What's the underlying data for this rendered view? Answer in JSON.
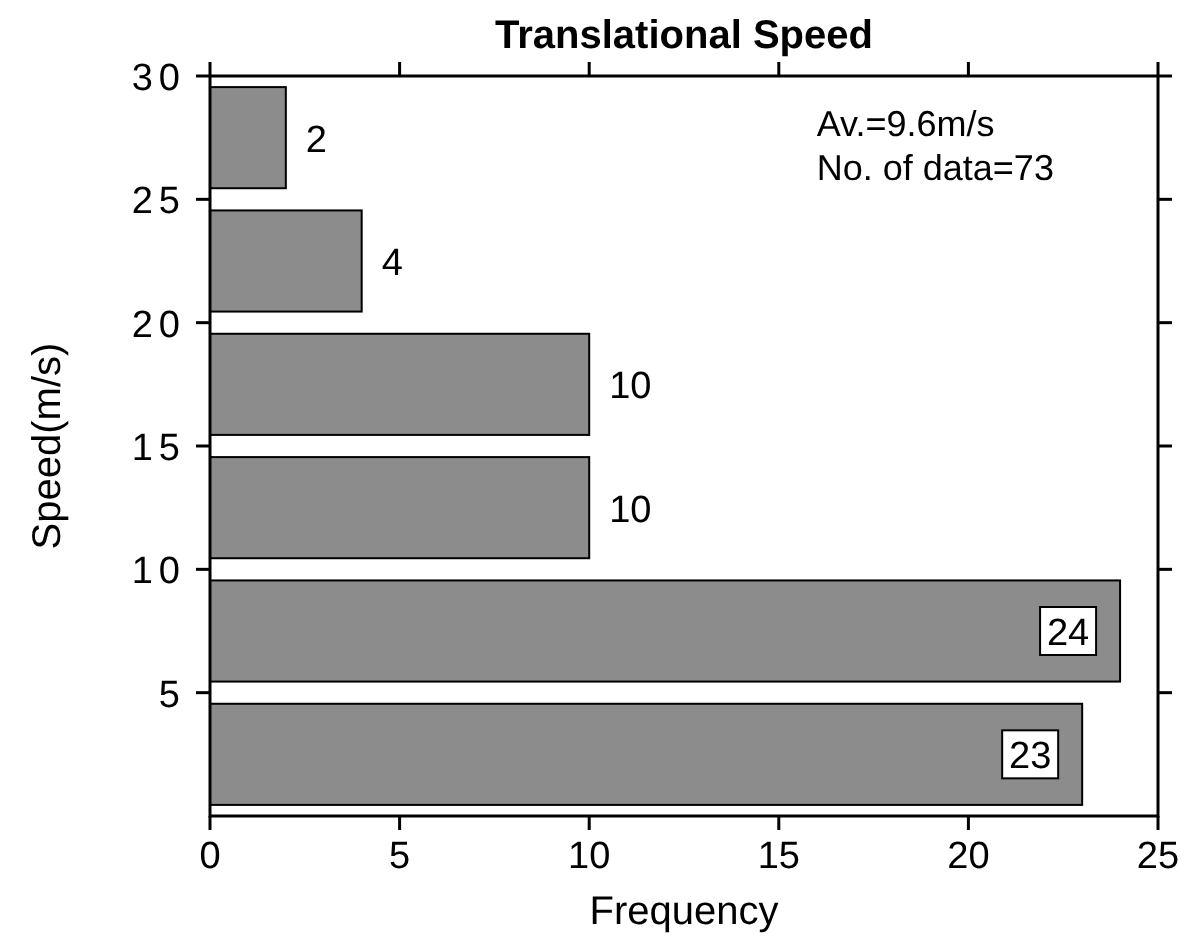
{
  "chart_data": {
    "type": "histogram",
    "orientation": "horizontal",
    "title": "Translational Speed",
    "xlabel": "Frequency",
    "ylabel": "Speed(m/s)",
    "bins": [
      0,
      5,
      10,
      15,
      20,
      25,
      30
    ],
    "values": [
      23,
      24,
      10,
      10,
      4,
      2
    ],
    "color": "#8c8c8c",
    "xlim": [
      0,
      25
    ],
    "xticks": [
      0,
      5,
      10,
      15,
      20,
      25
    ],
    "ylim": [
      0,
      30
    ],
    "yticks": [
      5,
      10,
      15,
      20,
      25,
      30
    ],
    "data_labels": true,
    "annotations": [
      "Av.=9.6m/s",
      "No. of data=73"
    ]
  }
}
